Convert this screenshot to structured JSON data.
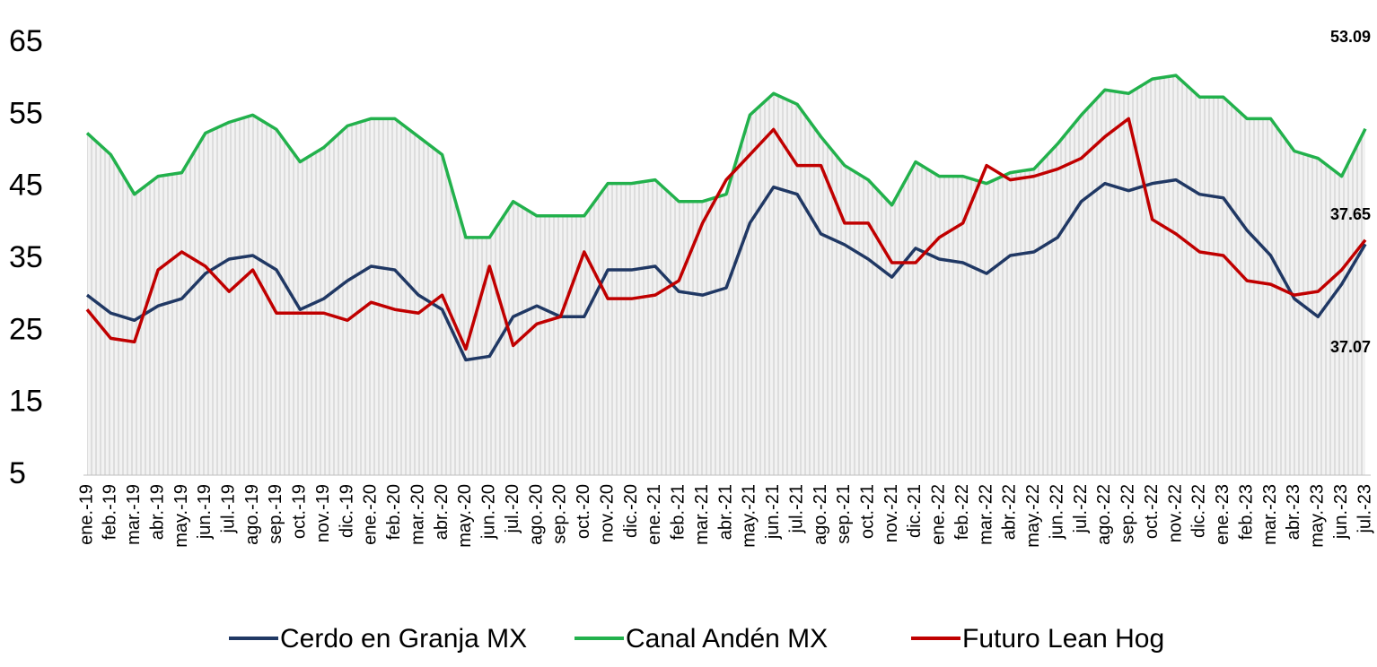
{
  "chart_data": {
    "type": "line",
    "categories": [
      "ene.-19",
      "feb.-19",
      "mar.-19",
      "abr.-19",
      "may.-19",
      "jun.-19",
      "jul.-19",
      "ago.-19",
      "sep.-19",
      "oct.-19",
      "nov.-19",
      "dic.-19",
      "ene.-20",
      "feb.-20",
      "mar.-20",
      "abr.-20",
      "may.-20",
      "jun.-20",
      "jul.-20",
      "ago.-20",
      "sep.-20",
      "oct.-20",
      "nov.-20",
      "dic.-20",
      "ene.-21",
      "feb.-21",
      "mar.-21",
      "abr.-21",
      "may.-21",
      "jun.-21",
      "jul.-21",
      "ago.-21",
      "sep.-21",
      "oct.-21",
      "nov.-21",
      "dic.-21",
      "ene.-22",
      "feb.-22",
      "mar.-22",
      "abr.-22",
      "may.-22",
      "jun.-22",
      "jul.-22",
      "ago.-22",
      "sep.-22",
      "oct.-22",
      "nov.-22",
      "dic.-22",
      "ene.-23",
      "feb.-23",
      "mar.-23",
      "abr.-23",
      "may.-23",
      "jun.-23",
      "jul.-23"
    ],
    "series": [
      {
        "name": "Cerdo en Granja MX",
        "color": "#203864",
        "values": [
          30,
          27.5,
          26.5,
          28.5,
          29.5,
          33,
          35,
          35.5,
          33.5,
          28,
          29.5,
          32,
          34,
          33.5,
          30,
          28,
          21,
          21.5,
          27,
          28.5,
          27,
          27,
          33.5,
          33.5,
          34,
          30.5,
          30,
          31,
          40,
          45,
          44,
          38.5,
          37,
          35,
          32.5,
          36.5,
          35,
          34.5,
          33,
          35.5,
          36,
          38,
          43,
          45.5,
          44.5,
          45.5,
          46,
          44,
          43.5,
          39,
          35.5,
          29.5,
          27,
          31.5,
          37.07
        ]
      },
      {
        "name": "Canal Andén MX",
        "color": "#22b14c",
        "values": [
          52.5,
          49.5,
          44,
          46.5,
          47,
          52.5,
          54,
          55,
          53,
          48.5,
          50.5,
          53.5,
          54.5,
          54.5,
          52,
          49.5,
          38,
          38,
          43,
          41,
          41,
          41,
          45.5,
          45.5,
          46,
          43,
          43,
          44,
          55,
          58,
          56.5,
          52,
          48,
          46,
          42.5,
          48.5,
          46.5,
          46.5,
          45.5,
          47,
          47.5,
          51,
          55,
          58.5,
          58,
          60,
          60.5,
          57.5,
          57.5,
          54.5,
          54.5,
          50,
          49,
          46.5,
          53.09
        ]
      },
      {
        "name": "Futuro Lean Hog",
        "color": "#c00000",
        "values": [
          28,
          24,
          23.5,
          33.5,
          36,
          34,
          30.5,
          33.5,
          27.5,
          27.5,
          27.5,
          26.5,
          29,
          28,
          27.5,
          30,
          22.5,
          34,
          23,
          26,
          27,
          36,
          29.5,
          29.5,
          30,
          32,
          40,
          46,
          49.5,
          53,
          48,
          48,
          40,
          40,
          34.5,
          34.5,
          38,
          40,
          48,
          46,
          46.5,
          47.5,
          49,
          52,
          54.5,
          40.5,
          38.5,
          36,
          35.5,
          32,
          31.5,
          30,
          30.5,
          33.5,
          37.65
        ]
      }
    ],
    "annotations": [
      "53.09",
      "37.65",
      "37.07"
    ],
    "ylim": [
      5,
      65
    ],
    "yticks": [
      5,
      15,
      25,
      35,
      45,
      55,
      65
    ]
  }
}
